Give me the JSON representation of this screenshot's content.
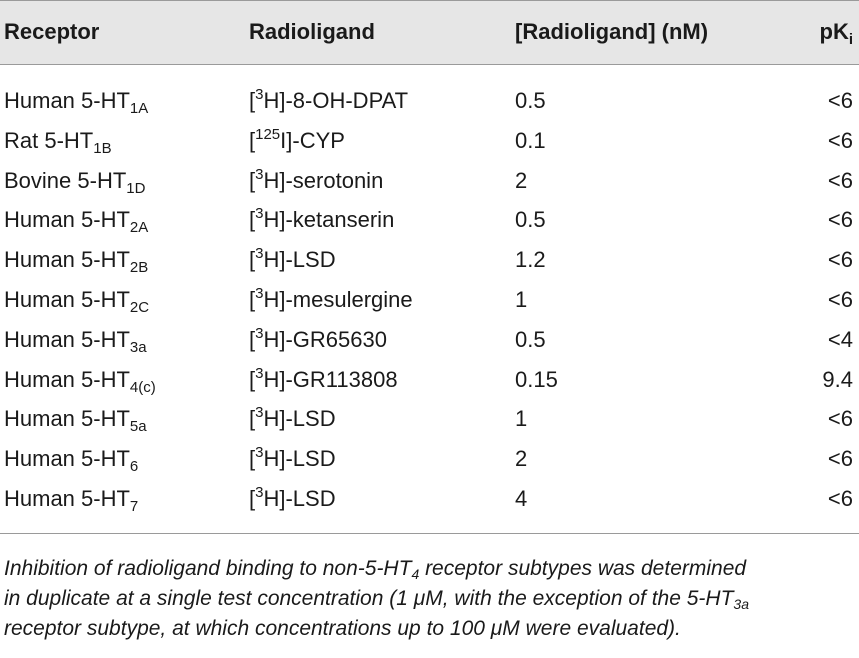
{
  "table": {
    "headers": {
      "receptor": "Receptor",
      "radioligand": "Radioligand",
      "concentration": "[Radioligand] (nM)",
      "pk_base": "pK",
      "pk_sub": "i"
    },
    "rows": [
      {
        "receptor_base": "Human 5-HT",
        "receptor_sub": "1A",
        "ligand_pre": "[",
        "ligand_sup": "3",
        "ligand_post": "H]-8-OH-DPAT",
        "conc": "0.5",
        "pk": "<6"
      },
      {
        "receptor_base": "Rat 5-HT",
        "receptor_sub": "1B",
        "ligand_pre": "[",
        "ligand_sup": "125",
        "ligand_post": "I]-CYP",
        "conc": "0.1",
        "pk": "<6"
      },
      {
        "receptor_base": "Bovine 5-HT",
        "receptor_sub": "1D",
        "ligand_pre": "[",
        "ligand_sup": "3",
        "ligand_post": "H]-serotonin",
        "conc": "2",
        "pk": "<6"
      },
      {
        "receptor_base": "Human 5-HT",
        "receptor_sub": "2A",
        "ligand_pre": "[",
        "ligand_sup": "3",
        "ligand_post": "H]-ketanserin",
        "conc": "0.5",
        "pk": "<6"
      },
      {
        "receptor_base": "Human 5-HT",
        "receptor_sub": "2B",
        "ligand_pre": "[",
        "ligand_sup": "3",
        "ligand_post": "H]-LSD",
        "conc": "1.2",
        "pk": "<6"
      },
      {
        "receptor_base": "Human 5-HT",
        "receptor_sub": "2C",
        "ligand_pre": "[",
        "ligand_sup": "3",
        "ligand_post": "H]-mesulergine",
        "conc": "1",
        "pk": "<6"
      },
      {
        "receptor_base": "Human 5-HT",
        "receptor_sub": "3a",
        "ligand_pre": "[",
        "ligand_sup": "3",
        "ligand_post": "H]-GR65630",
        "conc": "0.5",
        "pk": "<4"
      },
      {
        "receptor_base": "Human 5-HT",
        "receptor_sub": "4(c)",
        "ligand_pre": "[",
        "ligand_sup": "3",
        "ligand_post": "H]-GR113808",
        "conc": "0.15",
        "pk": "9.4"
      },
      {
        "receptor_base": "Human 5-HT",
        "receptor_sub": "5a",
        "ligand_pre": "[",
        "ligand_sup": "3",
        "ligand_post": "H]-LSD",
        "conc": "1",
        "pk": "<6"
      },
      {
        "receptor_base": "Human 5-HT",
        "receptor_sub": "6",
        "ligand_pre": "[",
        "ligand_sup": "3",
        "ligand_post": "H]-LSD",
        "conc": "2",
        "pk": "<6"
      },
      {
        "receptor_base": "Human 5-HT",
        "receptor_sub": "7",
        "ligand_pre": "[",
        "ligand_sup": "3",
        "ligand_post": "H]-LSD",
        "conc": "4",
        "pk": "<6"
      }
    ]
  },
  "footnote": {
    "l1_a": "Inhibition of radioligand binding to non-5-HT",
    "l1_sub": "4",
    "l1_b": " receptor subtypes was determined",
    "l2": "in duplicate at a single test concentration (1 μM, with the exception of the 5-HT",
    "l2_sub": "3a",
    "l3": "receptor subtype, at which concentrations up to 100 μM were evaluated)."
  },
  "colors": {
    "header_background": "#e6e6e6",
    "rule": "#9a9a9a",
    "text": "#1a1a1a"
  }
}
